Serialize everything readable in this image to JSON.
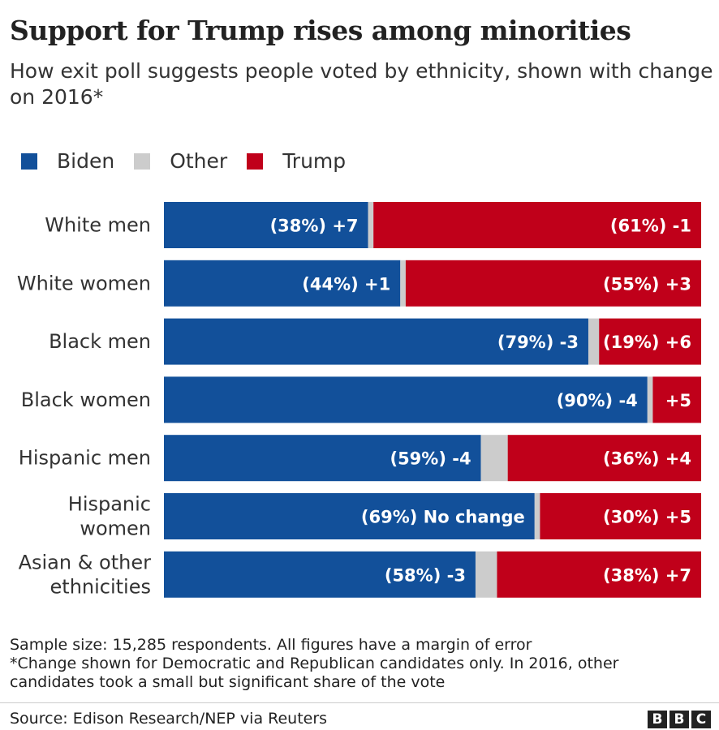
{
  "title": "Support for Trump rises among minorities",
  "subtitle": "How exit poll suggests people voted by ethnicity, shown with change on 2016*",
  "notes": [
    "Sample size: 15,285 respondents. All figures have a margin of error",
    "*Change shown for Democratic and Republican candidates only. In 2016, other candidates took a small but significant share of the vote"
  ],
  "source": "Source: Edison Research/NEP via Reuters",
  "logo": [
    "B",
    "B",
    "C"
  ],
  "chart_data": {
    "type": "bar",
    "orientation": "horizontal-stacked-100",
    "legend_position": "top-left",
    "xlim": [
      0,
      100
    ],
    "categories": [
      [
        "White men"
      ],
      [
        "White women"
      ],
      [
        "Black men"
      ],
      [
        "Black women"
      ],
      [
        "Hispanic men"
      ],
      [
        "Hispanic",
        "women"
      ],
      [
        "Asian & other",
        "ethnicities"
      ]
    ],
    "series": [
      {
        "name": "Biden",
        "color": "#12509a",
        "values": [
          38,
          44,
          79,
          90,
          59,
          69,
          58
        ],
        "labels": [
          "(38%) +7",
          "(44%) +1",
          "(79%) -3",
          "(90%) -4",
          "(59%) -4",
          "(69%) No change",
          "(58%) -3"
        ]
      },
      {
        "name": "Other",
        "color": "#cccccc",
        "values": [
          1,
          1,
          2,
          1,
          5,
          1,
          4
        ],
        "labels": [
          "",
          "",
          "",
          "",
          "",
          "",
          ""
        ]
      },
      {
        "name": "Trump",
        "color": "#c0001a",
        "values": [
          61,
          55,
          19,
          9,
          36,
          30,
          38
        ],
        "labels": [
          "(61%) -1",
          "(55%) +3",
          "(19%) +6",
          "+5",
          "(36%) +4",
          "(30%) +5",
          "(38%) +7"
        ]
      }
    ]
  }
}
